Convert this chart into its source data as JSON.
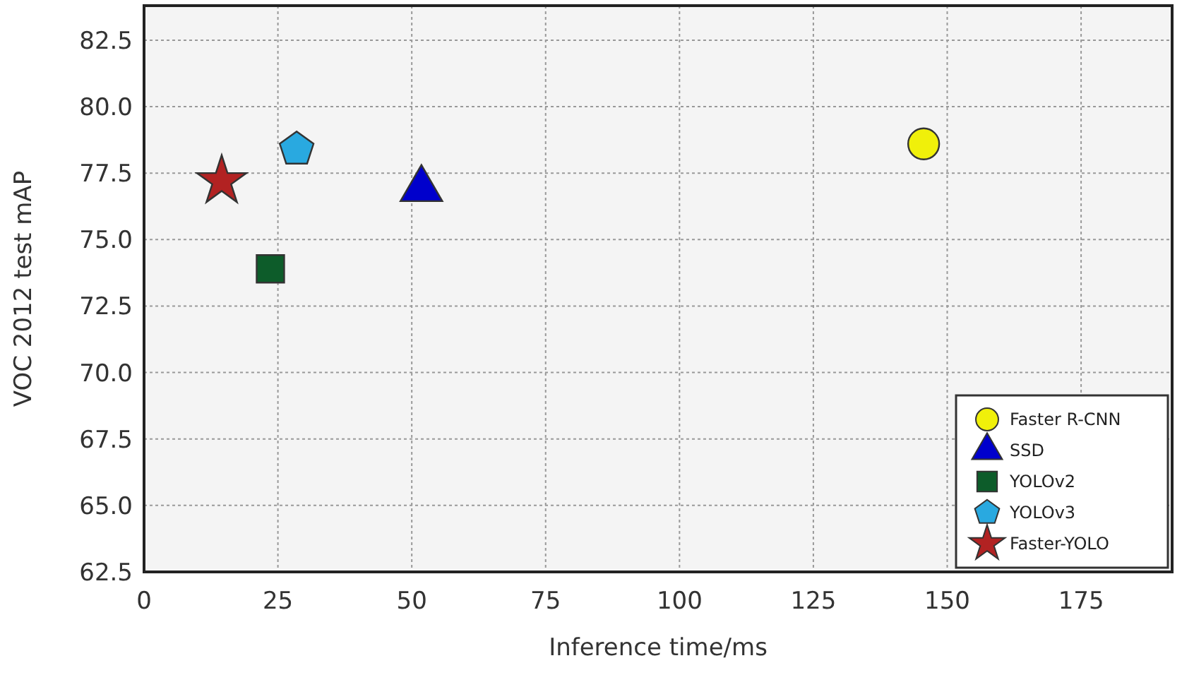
{
  "chart_data": {
    "type": "scatter",
    "xlabel": "Inference time/ms",
    "ylabel": "VOC 2012 test mAP",
    "xlim": [
      0,
      192
    ],
    "xticks": [
      0,
      25,
      50,
      75,
      100,
      125,
      150,
      175
    ],
    "ylim": [
      62.5,
      83.8
    ],
    "yticks": [
      {
        "value": 62.5,
        "label": "62.5"
      },
      {
        "value": 65,
        "label": "65.0"
      },
      {
        "value": 67.5,
        "label": "67.5"
      },
      {
        "value": 70,
        "label": "70.0"
      },
      {
        "value": 72.5,
        "label": "72.5"
      },
      {
        "value": 75,
        "label": "75.0"
      },
      {
        "value": 77.5,
        "label": "77.5"
      },
      {
        "value": 80,
        "label": "80.0"
      },
      {
        "value": 82.5,
        "label": "82.5"
      }
    ],
    "grid": true,
    "legend": "bottom right",
    "series": [
      {
        "name": "Faster R-CNN",
        "color": "#f0f00a",
        "marker": "circle",
        "x": [
          145.6
        ],
        "values": [
          78.6
        ]
      },
      {
        "name": "SSD",
        "color": "#0000cc",
        "marker": "triangle",
        "x": [
          51.8
        ],
        "values": [
          76.9
        ]
      },
      {
        "name": "YOLOv2",
        "color": "#0d5c2a",
        "marker": "square",
        "x": [
          23.6
        ],
        "values": [
          73.9
        ]
      },
      {
        "name": "YOLOv3",
        "color": "#29a9e0",
        "x": [
          28.5
        ],
        "values": [
          78.4
        ]
      },
      {
        "name": "Faster-YOLO",
        "color": "#b22222",
        "marker": "star",
        "x": [
          14.5
        ],
        "values": [
          77.2
        ]
      }
    ]
  }
}
